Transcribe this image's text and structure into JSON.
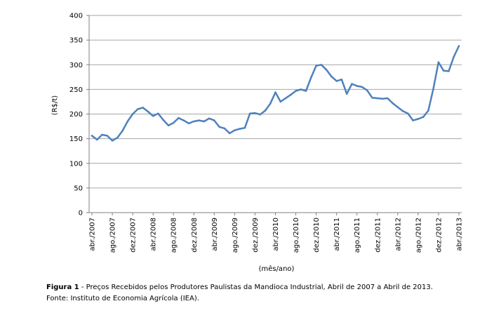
{
  "chart_data": {
    "type": "line",
    "ylabel": "(R$/t)",
    "xlabel": "(mês/ano)",
    "ylim": [
      0,
      400
    ],
    "yticks": [
      0,
      50,
      100,
      150,
      200,
      250,
      300,
      350,
      400
    ],
    "grid": "horizontal",
    "legend": "none",
    "colors": {
      "line": "#4f81bd",
      "grid": "#a6a6a6",
      "axis": "#808080"
    },
    "xticks": [
      "abr./2007",
      "ago./2007",
      "dez./2007",
      "abr./2008",
      "ago./2008",
      "dez./2008",
      "abr./2009",
      "ago./2009",
      "dez./2009",
      "abr./2010",
      "ago./2010",
      "dez./2010",
      "abr./2011",
      "ago./2011",
      "dez./2011",
      "abr./2012",
      "ago./2012",
      "dez./2012",
      "abr./2013"
    ],
    "series": [
      {
        "values": [
          156,
          148,
          158,
          156,
          146,
          152,
          166,
          185,
          200,
          210,
          213,
          205,
          196,
          201,
          188,
          177,
          182,
          192,
          187,
          181,
          185,
          187,
          185,
          191,
          187,
          174,
          171,
          161,
          167,
          170,
          172,
          201,
          202,
          199,
          207,
          221,
          244,
          225,
          232,
          239,
          247,
          250,
          247,
          274,
          298,
          300,
          290,
          276,
          267,
          270,
          241,
          261,
          257,
          255,
          248,
          233,
          232,
          231,
          232,
          222,
          214,
          206,
          201,
          187,
          190,
          194,
          207,
          252,
          305,
          288,
          287,
          316,
          338
        ]
      }
    ]
  },
  "caption": {
    "figure_label": "Figura 1",
    "figure_text": " - Preços Recebidos pelos Produtores Paulistas da Mandioca Industrial, Abril de 2007 a Abril de 2013.",
    "source": "Fonte: Instituto de Economia Agrícola (IEA)."
  }
}
